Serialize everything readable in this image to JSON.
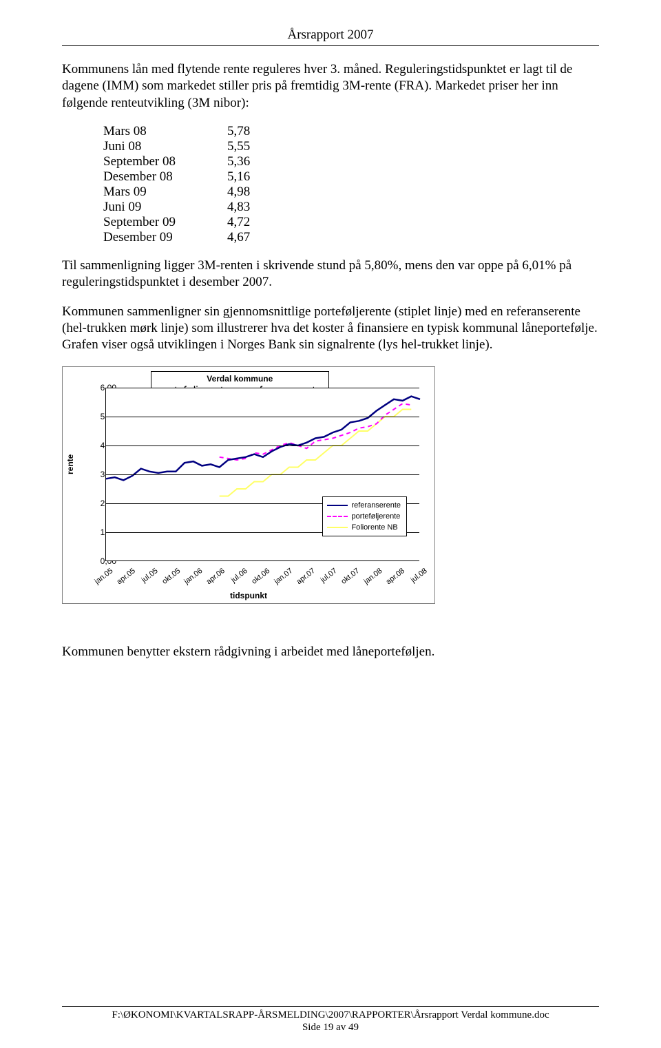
{
  "header": {
    "title": "Årsrapport 2007"
  },
  "intro": "Kommunens lån med flytende rente reguleres hver 3. måned. Reguleringstidspunktet er lagt til de dagene (IMM) som markedet stiller pris på fremtidig 3M-rente (FRA). Markedet priser her inn følgende renteutvikling (3M nibor):",
  "rate_table": {
    "rows": [
      {
        "label": "Mars 08",
        "value": "5,78"
      },
      {
        "label": "Juni 08",
        "value": "5,55"
      },
      {
        "label": "September 08",
        "value": "5,36"
      },
      {
        "label": "Desember 08",
        "value": "5,16"
      },
      {
        "label": "Mars 09",
        "value": "4,98"
      },
      {
        "label": "Juni 09",
        "value": "4,83"
      },
      {
        "label": "September 09",
        "value": "4,72"
      },
      {
        "label": "Desember 09",
        "value": "4,67"
      }
    ]
  },
  "para2": "Til sammenligning ligger 3M-renten i skrivende stund på 5,80%, mens den var oppe på 6,01% på reguleringstidspunktet i desember 2007.",
  "para3": "Kommunen sammenligner sin gjennomsnittlige porteføljerente (stiplet linje) med en referanserente (hel-trukken mørk linje) som illustrerer hva det koster å finansiere en typisk kommunal låneportefølje. Grafen viser også utviklingen i Norges Bank sin signalrente (lys hel-trukket linje).",
  "chart": {
    "type": "line",
    "title_small": "Verdal kommune",
    "title_large": "porteføljerente vs. referanserente",
    "yaxis_label": "rente",
    "xaxis_label": "tidspunkt",
    "ylim": [
      0,
      6
    ],
    "ytick_step": 1,
    "yticks": [
      "0,00",
      "1,00",
      "2,00",
      "3,00",
      "4,00",
      "5,00",
      "6,00"
    ],
    "xlabels": [
      "jan.05",
      "apr.05",
      "jul.05",
      "okt.05",
      "jan.06",
      "apr.06",
      "jul.06",
      "okt.06",
      "jan.07",
      "apr.07",
      "jul.07",
      "okt.07",
      "jan.08",
      "apr.08",
      "jul.08"
    ],
    "background_color": "#ffffff",
    "grid_color": "#000000",
    "legend": {
      "items": [
        {
          "label": "referanserente",
          "color": "#000080",
          "style": "solid",
          "width": 2
        },
        {
          "label": "porteføljerente",
          "color": "#ff00ff",
          "style": "dashed",
          "width": 2
        },
        {
          "label": "Foliorente NB",
          "color": "#ffff66",
          "style": "solid",
          "width": 2
        }
      ]
    },
    "series": {
      "referanserente": {
        "color": "#000080",
        "width": 2.5,
        "dash": "none",
        "y": [
          2.85,
          2.9,
          2.8,
          2.95,
          3.2,
          3.1,
          3.05,
          3.1,
          3.1,
          3.4,
          3.45,
          3.3,
          3.35,
          3.25,
          3.5,
          3.55,
          3.6,
          3.7,
          3.6,
          3.8,
          3.95,
          4.05,
          4.0,
          4.1,
          4.25,
          4.3,
          4.45,
          4.55,
          4.8,
          4.85,
          4.95,
          5.2,
          5.4,
          5.6,
          5.55,
          5.7,
          5.6
        ]
      },
      "porteføljerente": {
        "color": "#ff00ff",
        "width": 2,
        "dash": "6,5",
        "y": [
          null,
          null,
          null,
          null,
          null,
          null,
          null,
          null,
          null,
          null,
          null,
          null,
          null,
          3.6,
          3.55,
          3.5,
          3.55,
          3.75,
          3.7,
          3.85,
          4.0,
          4.1,
          4.0,
          3.9,
          4.15,
          4.2,
          4.25,
          4.35,
          4.45,
          4.6,
          4.65,
          4.75,
          5.05,
          5.25,
          5.45,
          5.4,
          null
        ]
      },
      "foliorente": {
        "color": "#ffff66",
        "width": 2,
        "dash": "none",
        "y": [
          null,
          null,
          null,
          null,
          null,
          null,
          null,
          null,
          null,
          null,
          null,
          null,
          null,
          2.25,
          2.25,
          2.5,
          2.5,
          2.75,
          2.75,
          3.0,
          3.0,
          3.25,
          3.25,
          3.5,
          3.5,
          3.75,
          4.0,
          4.0,
          4.25,
          4.5,
          4.5,
          4.75,
          5.0,
          5.0,
          5.25,
          5.25,
          null
        ]
      }
    }
  },
  "para4": "Kommunen benytter ekstern rådgivning i arbeidet med låneporteføljen.",
  "footer": {
    "path": "F:\\ØKONOMI\\KVARTALSRAPP-ÅRSMELDING\\2007\\RAPPORTER\\Årsrapport Verdal kommune.doc",
    "page": "Side 19 av 49"
  }
}
